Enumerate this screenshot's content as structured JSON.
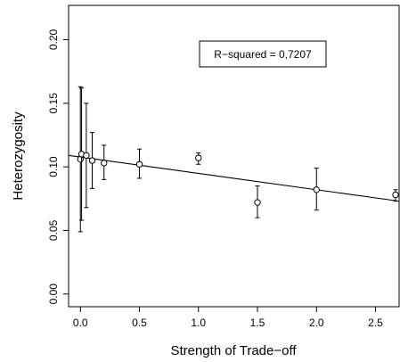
{
  "chart_data": {
    "type": "scatter",
    "title": "",
    "xlabel": "Strength of Trade−off",
    "ylabel": "Heterozygosity",
    "xlim": [
      -0.1,
      2.7
    ],
    "ylim": [
      -0.01,
      0.227
    ],
    "x_ticks": [
      0.0,
      0.5,
      1.0,
      1.5,
      2.0,
      2.5
    ],
    "x_tick_labels": [
      "0.0",
      "0.5",
      "1.0",
      "1.5",
      "2.0",
      "2.5"
    ],
    "y_ticks": [
      0.0,
      0.05,
      0.1,
      0.15,
      0.2
    ],
    "y_tick_labels": [
      "0.00",
      "0.05",
      "0.10",
      "0.15",
      "0.20"
    ],
    "grid": false,
    "points": [
      {
        "x": 0.0,
        "y": 0.106,
        "lower": 0.049,
        "upper": 0.163
      },
      {
        "x": 0.01,
        "y": 0.11,
        "lower": 0.058,
        "upper": 0.162
      },
      {
        "x": 0.05,
        "y": 0.109,
        "lower": 0.068,
        "upper": 0.15
      },
      {
        "x": 0.1,
        "y": 0.105,
        "lower": 0.083,
        "upper": 0.127
      },
      {
        "x": 0.2,
        "y": 0.103,
        "lower": 0.09,
        "upper": 0.117
      },
      {
        "x": 0.5,
        "y": 0.102,
        "lower": 0.091,
        "upper": 0.114
      },
      {
        "x": 1.0,
        "y": 0.107,
        "lower": 0.102,
        "upper": 0.111
      },
      {
        "x": 1.5,
        "y": 0.072,
        "lower": 0.06,
        "upper": 0.085
      },
      {
        "x": 2.0,
        "y": 0.082,
        "lower": 0.066,
        "upper": 0.099
      },
      {
        "x": 2.67,
        "y": 0.078,
        "lower": 0.073,
        "upper": 0.082
      }
    ],
    "fit_line": {
      "x": [
        -0.1,
        2.7
      ],
      "y": [
        0.109,
        0.073
      ]
    },
    "annotation": "R−squared = 0,7207"
  }
}
